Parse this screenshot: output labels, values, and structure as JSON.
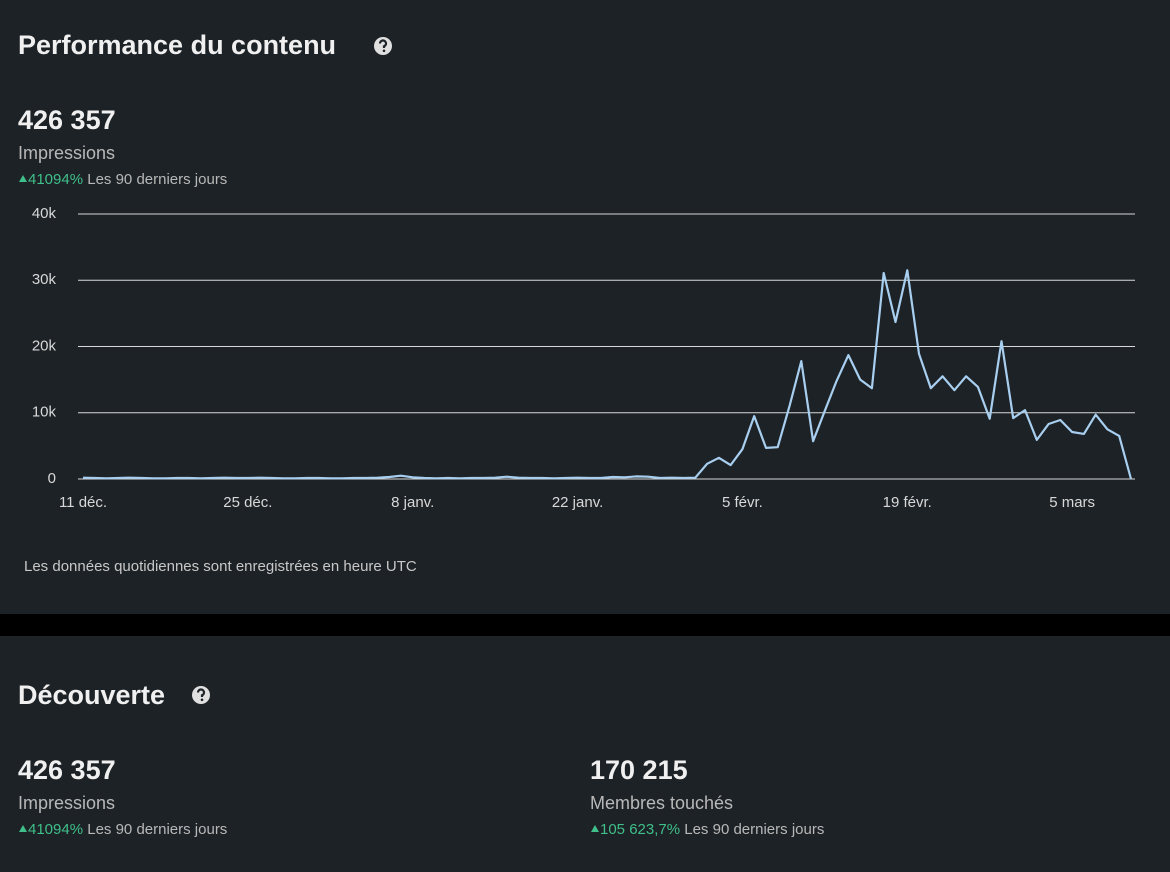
{
  "performance": {
    "title": "Performance du contenu",
    "stat": "426 357",
    "stat_label": "Impressions",
    "change": "41094%",
    "period": "Les 90 derniers jours",
    "footnote": "Les données quotidiennes sont enregistrées en heure UTC"
  },
  "chart_data": {
    "type": "line",
    "categories": [
      "11 déc.",
      null,
      null,
      null,
      null,
      null,
      null,
      null,
      null,
      null,
      null,
      null,
      null,
      null,
      "25 déc.",
      null,
      null,
      null,
      null,
      null,
      null,
      null,
      null,
      null,
      null,
      null,
      null,
      null,
      "8 janv.",
      null,
      null,
      null,
      null,
      null,
      null,
      null,
      null,
      null,
      null,
      null,
      null,
      null,
      "22 janv.",
      null,
      null,
      null,
      null,
      null,
      null,
      null,
      null,
      null,
      null,
      null,
      null,
      null,
      "5 févr.",
      null,
      null,
      null,
      null,
      null,
      null,
      null,
      null,
      null,
      null,
      null,
      null,
      null,
      "19 févr.",
      null,
      null,
      null,
      null,
      null,
      null,
      null,
      null,
      null,
      null,
      null,
      null,
      null,
      "5 mars",
      null,
      null,
      null,
      null,
      null
    ],
    "series": [
      {
        "name": "Impressions",
        "color": "#a8cff0",
        "values": [
          200,
          150,
          100,
          150,
          200,
          150,
          100,
          100,
          150,
          150,
          100,
          150,
          200,
          150,
          150,
          200,
          150,
          100,
          100,
          150,
          150,
          100,
          100,
          150,
          150,
          200,
          300,
          500,
          250,
          150,
          100,
          150,
          100,
          150,
          150,
          200,
          350,
          200,
          150,
          150,
          100,
          150,
          200,
          150,
          150,
          300,
          250,
          400,
          350,
          150,
          200,
          150,
          200,
          2300,
          3200,
          2100,
          4500,
          9500,
          4700,
          4800,
          11000,
          17800,
          5700,
          10300,
          14800,
          18700,
          15000,
          13700,
          31100,
          23700,
          31500,
          18900,
          13700,
          15500,
          13400,
          15500,
          13900,
          9100,
          20800,
          9200,
          10400,
          5900,
          8300,
          8900,
          7100,
          6800,
          9700,
          7500,
          6500,
          0
        ]
      }
    ],
    "ylim": [
      0,
      40000
    ],
    "yticks": [
      0,
      {
        "value": 10000,
        "label": "10k"
      },
      {
        "value": 20000,
        "label": "20k"
      },
      {
        "value": 30000,
        "label": "30k"
      },
      {
        "value": 40000,
        "label": "40k"
      }
    ],
    "grid": true
  },
  "discovery": {
    "title": "Découverte",
    "stats": [
      {
        "stat": "426 357",
        "label": "Impressions",
        "change": "41094%",
        "period": "Les 90 derniers jours"
      },
      {
        "stat": "170 215",
        "label": "Membres touchés",
        "change": "105 623,7%",
        "period": "Les 90 derniers jours"
      }
    ]
  }
}
